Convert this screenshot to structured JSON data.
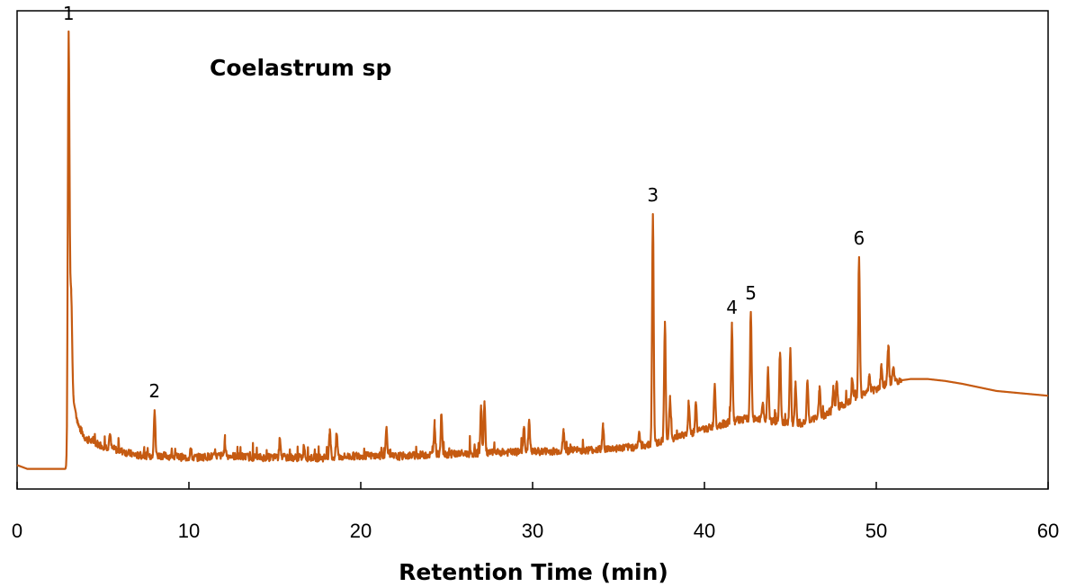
{
  "chart_data": {
    "type": "line",
    "title": "Coelastrum sp",
    "xlabel": "Retention Time (min)",
    "ylabel": "",
    "xlim": [
      0,
      60
    ],
    "ylim": [
      0,
      100
    ],
    "x_ticks": [
      0,
      10,
      20,
      30,
      40,
      50,
      60
    ],
    "x_tick_labels": [
      "0",
      "10",
      "20",
      "30",
      "40",
      "50",
      "60"
    ],
    "y_ticks_shown": false,
    "grid": false,
    "legend": "none",
    "line_color": "#c55a11",
    "baseline": [
      [
        0,
        5
      ],
      [
        0.6,
        4.2
      ],
      [
        2.9,
        4.2
      ],
      [
        3.0,
        30
      ],
      [
        3.3,
        18
      ],
      [
        3.6,
        13
      ],
      [
        4.0,
        10.5
      ],
      [
        5.0,
        9
      ],
      [
        6,
        8
      ],
      [
        7,
        7
      ],
      [
        8.5,
        7
      ],
      [
        10,
        6.5
      ],
      [
        12,
        7
      ],
      [
        14,
        6.6
      ],
      [
        16,
        6.6
      ],
      [
        18,
        6.5
      ],
      [
        20,
        7
      ],
      [
        22,
        6.8
      ],
      [
        24,
        7.2
      ],
      [
        26,
        7.4
      ],
      [
        28,
        7.6
      ],
      [
        30,
        7.8
      ],
      [
        32,
        8.0
      ],
      [
        34,
        8.3
      ],
      [
        36,
        8.8
      ],
      [
        37,
        9.5
      ],
      [
        38,
        10.5
      ],
      [
        39,
        11.5
      ],
      [
        40,
        12.5
      ],
      [
        41,
        13.5
      ],
      [
        42,
        14.5
      ],
      [
        43,
        14.8
      ],
      [
        44,
        14.2
      ],
      [
        45,
        13.5
      ],
      [
        46,
        14.0
      ],
      [
        47,
        15.5
      ],
      [
        48,
        17.5
      ],
      [
        49,
        19.5
      ],
      [
        50,
        21.0
      ],
      [
        51,
        22.5
      ],
      [
        52,
        23.0
      ],
      [
        53,
        23.0
      ],
      [
        54,
        22.6
      ],
      [
        55,
        22.0
      ],
      [
        57,
        20.5
      ],
      [
        60,
        19.5
      ]
    ],
    "peaks": [
      {
        "x": 3.0,
        "y": 95.5,
        "label": "1"
      },
      {
        "x": 3.15,
        "y": 41,
        "label": ""
      },
      {
        "x": 3.5,
        "y": 14.5,
        "label": ""
      },
      {
        "x": 5.4,
        "y": 11.5,
        "label": ""
      },
      {
        "x": 8.0,
        "y": 16.5,
        "label": "2"
      },
      {
        "x": 10.1,
        "y": 8.5,
        "label": ""
      },
      {
        "x": 12.1,
        "y": 9.5,
        "label": ""
      },
      {
        "x": 15.3,
        "y": 10.5,
        "label": ""
      },
      {
        "x": 16.7,
        "y": 9.0,
        "label": ""
      },
      {
        "x": 18.2,
        "y": 12.5,
        "label": ""
      },
      {
        "x": 18.6,
        "y": 11.5,
        "label": ""
      },
      {
        "x": 21.5,
        "y": 13.0,
        "label": ""
      },
      {
        "x": 24.3,
        "y": 13.0,
        "label": ""
      },
      {
        "x": 24.7,
        "y": 15.5,
        "label": ""
      },
      {
        "x": 27.0,
        "y": 17.0,
        "label": ""
      },
      {
        "x": 27.2,
        "y": 18.0,
        "label": ""
      },
      {
        "x": 29.5,
        "y": 13.0,
        "label": ""
      },
      {
        "x": 29.8,
        "y": 14.5,
        "label": ""
      },
      {
        "x": 31.8,
        "y": 12.0,
        "label": ""
      },
      {
        "x": 34.1,
        "y": 13.0,
        "label": ""
      },
      {
        "x": 36.2,
        "y": 12.0,
        "label": ""
      },
      {
        "x": 37.0,
        "y": 57.5,
        "label": "3"
      },
      {
        "x": 37.7,
        "y": 35.0,
        "label": ""
      },
      {
        "x": 38.0,
        "y": 19.0,
        "label": ""
      },
      {
        "x": 39.1,
        "y": 17.5,
        "label": ""
      },
      {
        "x": 39.5,
        "y": 18.0,
        "label": ""
      },
      {
        "x": 40.6,
        "y": 22.0,
        "label": ""
      },
      {
        "x": 41.6,
        "y": 34.0,
        "label": "4"
      },
      {
        "x": 42.7,
        "y": 37.0,
        "label": "5"
      },
      {
        "x": 43.4,
        "y": 18.0,
        "label": ""
      },
      {
        "x": 43.7,
        "y": 25.5,
        "label": ""
      },
      {
        "x": 44.4,
        "y": 28.5,
        "label": ""
      },
      {
        "x": 45.0,
        "y": 29.5,
        "label": ""
      },
      {
        "x": 45.3,
        "y": 22.5,
        "label": ""
      },
      {
        "x": 46.0,
        "y": 22.5,
        "label": ""
      },
      {
        "x": 46.7,
        "y": 21.5,
        "label": ""
      },
      {
        "x": 47.5,
        "y": 21.0,
        "label": ""
      },
      {
        "x": 47.7,
        "y": 22.5,
        "label": ""
      },
      {
        "x": 48.6,
        "y": 23.0,
        "label": ""
      },
      {
        "x": 49.0,
        "y": 48.5,
        "label": "6"
      },
      {
        "x": 49.6,
        "y": 24.0,
        "label": ""
      },
      {
        "x": 50.3,
        "y": 25.5,
        "label": ""
      },
      {
        "x": 50.7,
        "y": 30.0,
        "label": ""
      },
      {
        "x": 51.0,
        "y": 25.5,
        "label": ""
      }
    ]
  }
}
